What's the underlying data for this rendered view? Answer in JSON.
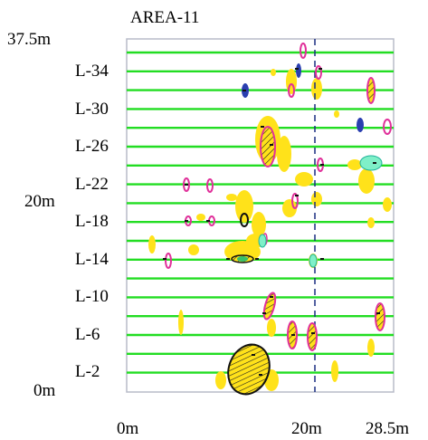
{
  "title": "AREA-11",
  "y_axis": {
    "labels": [
      {
        "text": "37.5m",
        "value": 37.5
      },
      {
        "text": "20m",
        "value": 20
      },
      {
        "text": "0m",
        "value": 0
      }
    ]
  },
  "x_axis": {
    "labels": [
      {
        "text": "0m",
        "value": 0
      },
      {
        "text": "20m",
        "value": 20
      },
      {
        "text": "28.5m",
        "value": 28.5
      }
    ]
  },
  "line_labels": [
    "L-34",
    "L-30",
    "L-26",
    "L-22",
    "L-18",
    "L-14",
    "L-10",
    "L-6",
    "L-2"
  ],
  "colors": {
    "survey_line": "#22dd22",
    "anomaly_fill": "#ffe21a",
    "anomaly_outline_magenta": "#e0309a",
    "anomaly_outline_black": "#111111",
    "dashed_line": "#1a2d80",
    "frame": "#b8bcc8"
  }
}
